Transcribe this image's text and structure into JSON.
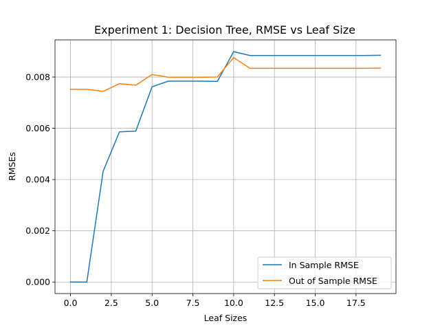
{
  "chart_data": {
    "type": "line",
    "title": "Experiment 1: Decision Tree, RMSE vs Leaf Size",
    "xlabel": "Leaf Sizes",
    "ylabel": "RMSEs",
    "xlim": [
      -0.95,
      19.95
    ],
    "ylim": [
      -0.00045,
      0.00945
    ],
    "xticks": [
      0.0,
      2.5,
      5.0,
      7.5,
      10.0,
      12.5,
      15.0,
      17.5
    ],
    "xtick_labels": [
      "0.0",
      "2.5",
      "5.0",
      "7.5",
      "10.0",
      "12.5",
      "15.0",
      "17.5"
    ],
    "yticks": [
      0.0,
      0.002,
      0.004,
      0.006,
      0.008
    ],
    "ytick_labels": [
      "0.000",
      "0.002",
      "0.004",
      "0.006",
      "0.008"
    ],
    "grid": true,
    "legend_position": "lower-right",
    "x": [
      0,
      1,
      2,
      3,
      4,
      5,
      6,
      7,
      8,
      9,
      10,
      11,
      12,
      13,
      14,
      15,
      16,
      17,
      18,
      19
    ],
    "series": [
      {
        "name": "In Sample RMSE",
        "color": "#1f77b4",
        "values": [
          0.0,
          0.0,
          0.00432,
          0.00586,
          0.00589,
          0.00762,
          0.00784,
          0.00784,
          0.00784,
          0.00783,
          0.00899,
          0.00884,
          0.00884,
          0.00884,
          0.00884,
          0.00884,
          0.00884,
          0.00884,
          0.00884,
          0.00885
        ]
      },
      {
        "name": "Out of Sample RMSE",
        "color": "#ff7f0e",
        "values": [
          0.00752,
          0.00752,
          0.00744,
          0.00774,
          0.00768,
          0.0081,
          0.00799,
          0.00799,
          0.00799,
          0.008,
          0.00876,
          0.00834,
          0.00834,
          0.00834,
          0.00834,
          0.00834,
          0.00834,
          0.00834,
          0.00834,
          0.00835
        ]
      }
    ]
  }
}
